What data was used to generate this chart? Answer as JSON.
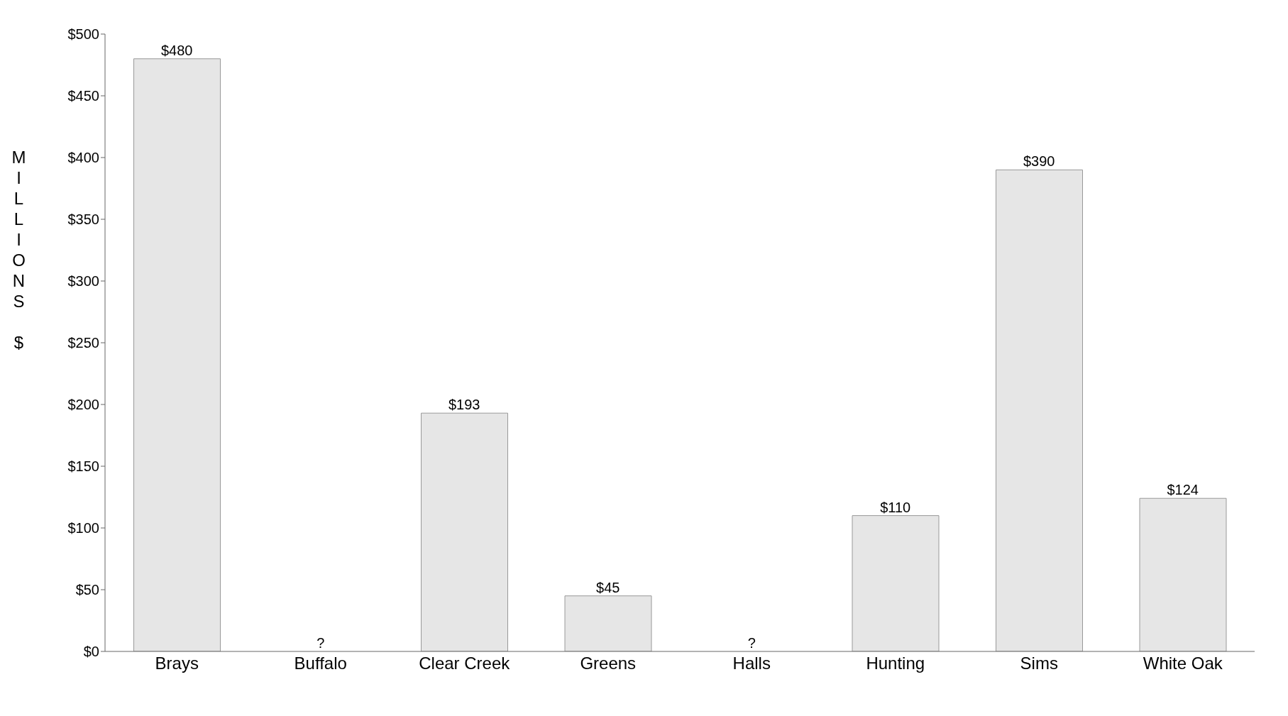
{
  "chart_data": {
    "type": "bar",
    "ylabel": "MILLIONS $",
    "categories": [
      "Brays",
      "Buffalo",
      "Clear Creek",
      "Greens",
      "Halls",
      "Hunting",
      "Sims",
      "White Oak"
    ],
    "values": [
      480,
      null,
      193,
      45,
      null,
      110,
      390,
      124
    ],
    "value_labels": [
      "$480",
      "?",
      "$193",
      "$45",
      "?",
      "$110",
      "$390",
      "$124"
    ],
    "color": "#e6e6e6",
    "ylim": [
      0,
      500
    ],
    "yticks": [
      {
        "value": 0,
        "label": "$0"
      },
      {
        "value": 50,
        "label": "$50"
      },
      {
        "value": 100,
        "label": "$100"
      },
      {
        "value": 150,
        "label": "$150"
      },
      {
        "value": 200,
        "label": "$200"
      },
      {
        "value": 250,
        "label": "$250"
      },
      {
        "value": 300,
        "label": "$300"
      },
      {
        "value": 350,
        "label": "$350"
      },
      {
        "value": 400,
        "label": "$400"
      },
      {
        "value": 450,
        "label": "$450"
      },
      {
        "value": 500,
        "label": "$500"
      }
    ],
    "grid": false
  }
}
